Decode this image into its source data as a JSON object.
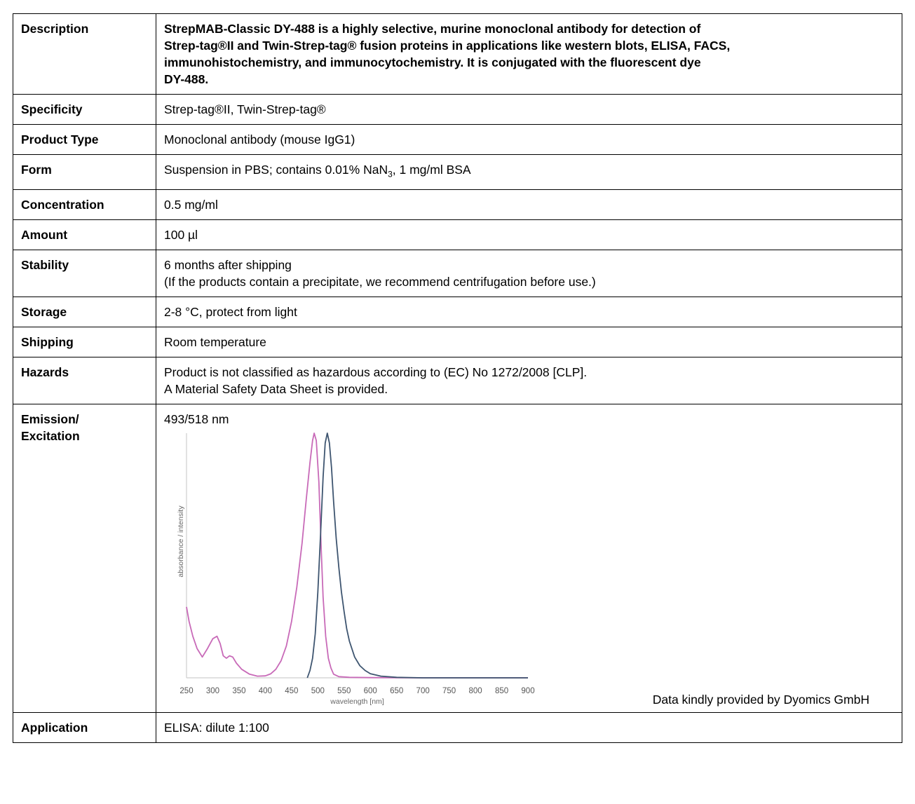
{
  "rows": [
    {
      "label": "Description",
      "lines": [
        "StrepMAB-Classic DY-488 is a highly selective, murine monoclonal antibody for detection of",
        "Strep-tag®II and Twin-Strep-tag® fusion proteins in applications like western blots, ELISA, FACS,",
        "immunohistochemistry, and immunocytochemistry. It is conjugated with the fluorescent dye",
        "DY-488."
      ]
    },
    {
      "label": "Specificity",
      "lines": [
        "Strep-tag®II, Twin-Strep-tag®"
      ]
    },
    {
      "label": "Product Type",
      "lines": [
        "Monoclonal antibody (mouse IgG1)"
      ]
    },
    {
      "label": "Form",
      "value_pre": "Suspension in PBS; contains 0.01% NaN",
      "value_sub": "3",
      "value_post": ", 1 mg/ml BSA"
    },
    {
      "label": "Concentration",
      "lines": [
        "0.5 mg/ml"
      ]
    },
    {
      "label": "Amount",
      "lines": [
        "100 µl"
      ]
    },
    {
      "label": "Stability",
      "lines": [
        "6 months after shipping",
        "(If the products contain a precipitate, we recommend centrifugation before use.)"
      ]
    },
    {
      "label": "Storage",
      "lines": [
        "2-8 °C, protect from light"
      ]
    },
    {
      "label": "Shipping",
      "lines": [
        "Room temperature"
      ]
    },
    {
      "label": "Hazards",
      "lines": [
        "Product is not classified as hazardous according to (EC) No 1272/2008 [CLP].",
        "A Material Safety Data Sheet is provided."
      ]
    },
    {
      "label_lines": [
        "Emission/",
        "Excitation"
      ],
      "value": "493/518 nm",
      "credit": "Data kindly provided by Dyomics GmbH"
    },
    {
      "label": "Application",
      "lines": [
        "ELISA: dilute 1:100"
      ]
    }
  ],
  "chart_data": {
    "type": "line",
    "xlabel": "wavelength [nm]",
    "ylabel": "absorbance / intensity",
    "xlim": [
      250,
      900
    ],
    "ylim": [
      0,
      1
    ],
    "xticks": [
      250,
      300,
      350,
      400,
      450,
      500,
      550,
      600,
      650,
      700,
      750,
      800,
      850,
      900
    ],
    "series": [
      {
        "color": "#c86ab8",
        "x": [
          250,
          255,
          262,
          270,
          280,
          290,
          300,
          308,
          314,
          320,
          326,
          332,
          338,
          345,
          355,
          370,
          385,
          400,
          410,
          420,
          430,
          440,
          450,
          460,
          470,
          478,
          485,
          490,
          493,
          497,
          502,
          506,
          510,
          515,
          520,
          525,
          530,
          540,
          560,
          600,
          700,
          800,
          900
        ],
        "y": [
          0.29,
          0.23,
          0.17,
          0.12,
          0.085,
          0.12,
          0.16,
          0.17,
          0.14,
          0.09,
          0.08,
          0.09,
          0.085,
          0.06,
          0.035,
          0.015,
          0.007,
          0.008,
          0.016,
          0.035,
          0.07,
          0.13,
          0.23,
          0.37,
          0.55,
          0.73,
          0.88,
          0.97,
          1.0,
          0.97,
          0.8,
          0.55,
          0.33,
          0.17,
          0.08,
          0.04,
          0.015,
          0.005,
          0.002,
          0.001,
          0.0,
          0.0,
          0.0
        ]
      },
      {
        "color": "#3e5570",
        "x": [
          480,
          485,
          490,
          495,
          500,
          505,
          510,
          514,
          518,
          522,
          526,
          530,
          535,
          540,
          545,
          550,
          555,
          560,
          570,
          580,
          590,
          600,
          620,
          650,
          700,
          800,
          900
        ],
        "y": [
          0.0,
          0.03,
          0.08,
          0.18,
          0.35,
          0.58,
          0.82,
          0.96,
          1.0,
          0.96,
          0.86,
          0.72,
          0.57,
          0.45,
          0.35,
          0.27,
          0.2,
          0.15,
          0.085,
          0.05,
          0.03,
          0.017,
          0.007,
          0.002,
          0.0,
          0.0,
          0.0
        ]
      }
    ]
  }
}
